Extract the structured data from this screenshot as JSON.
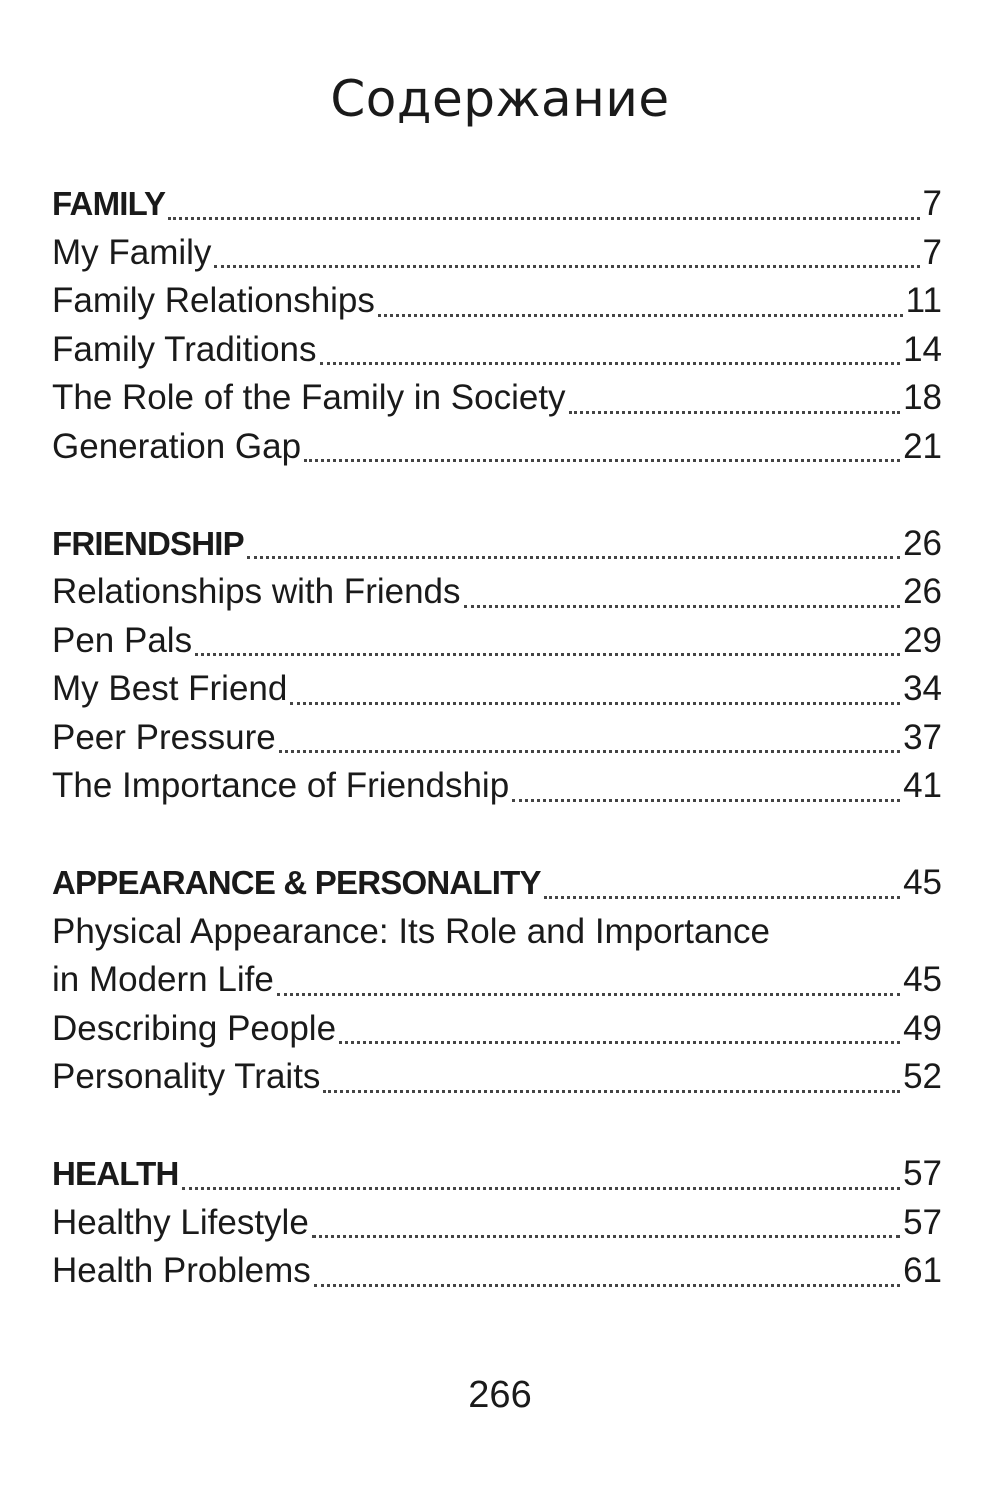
{
  "title": "Содержание",
  "sections": [
    {
      "heading": {
        "label": "FAMILY",
        "page": "7"
      },
      "items": [
        {
          "label": "My Family",
          "page": "7"
        },
        {
          "label": "Family Relationships",
          "page": "11"
        },
        {
          "label": "Family Traditions",
          "page": "14"
        },
        {
          "label": "The Role of the Family in Society",
          "page": "18"
        },
        {
          "label": "Generation Gap",
          "page": "21"
        }
      ]
    },
    {
      "heading": {
        "label": "FRIENDSHIP",
        "page": "26"
      },
      "items": [
        {
          "label": "Relationships with Friends",
          "page": "26"
        },
        {
          "label": "Pen Pals",
          "page": "29"
        },
        {
          "label": "My Best Friend",
          "page": "34"
        },
        {
          "label": "Peer Pressure",
          "page": "37"
        },
        {
          "label": "The Importance of Friendship",
          "page": "41"
        }
      ]
    },
    {
      "heading": {
        "label": "APPEARANCE & PERSONALITY",
        "page": "45"
      },
      "items": [
        {
          "label": "Physical Appearance: Its Role and Importance",
          "continuation": "in Modern Life",
          "page": "45"
        },
        {
          "label": "Describing People",
          "page": "49"
        },
        {
          "label": "Personality Traits",
          "page": "52"
        }
      ]
    },
    {
      "heading": {
        "label": "HEALTH",
        "page": "57"
      },
      "items": [
        {
          "label": "Healthy Lifestyle",
          "page": "57"
        },
        {
          "label": "Health Problems",
          "page": "61"
        }
      ]
    }
  ],
  "page_number": "266"
}
